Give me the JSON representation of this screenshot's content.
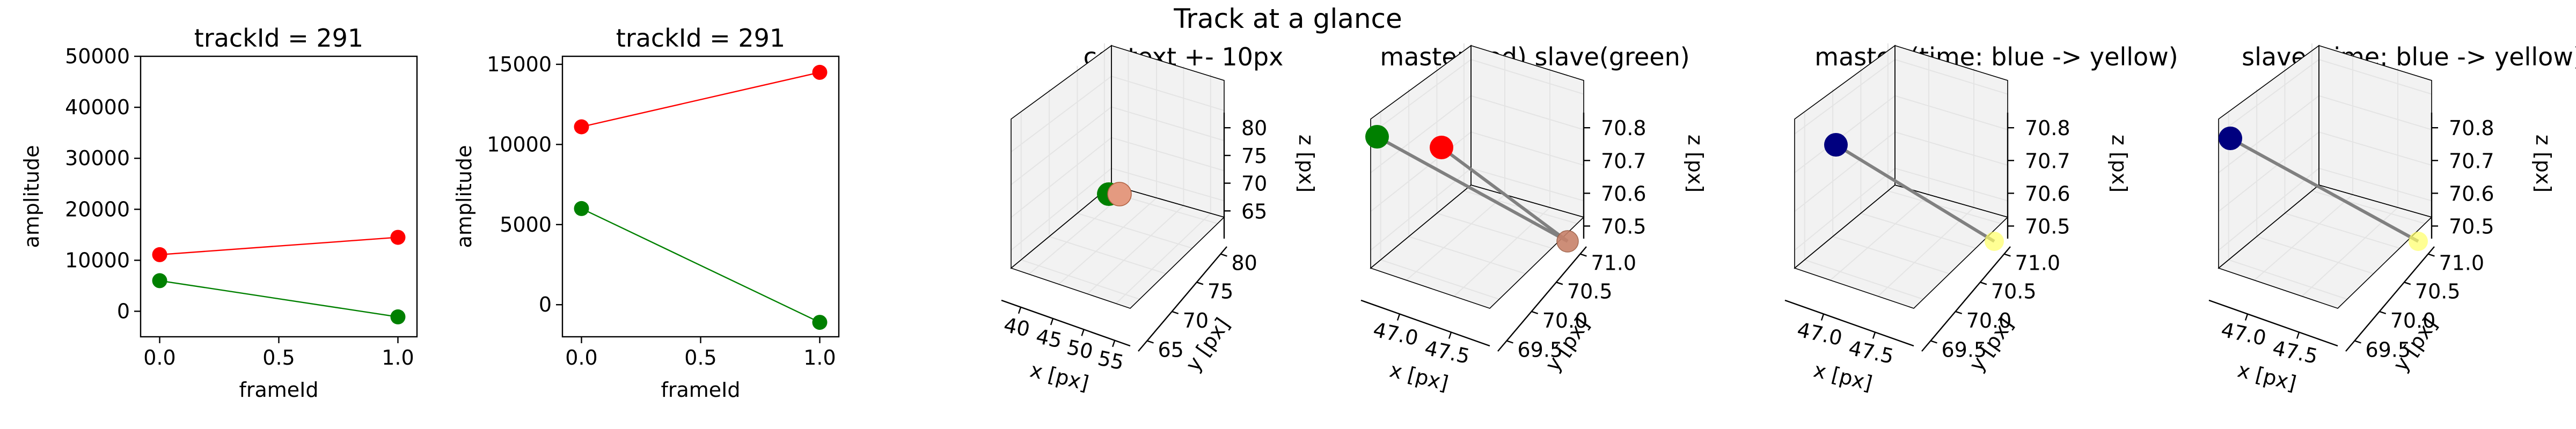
{
  "figure": {
    "title": "Track at a glance"
  },
  "chart_data": [
    {
      "type": "line",
      "title": "trackId = 291",
      "xlabel": "frameId",
      "ylabel": "amplitude",
      "xlim": [
        -0.08,
        1.08
      ],
      "ylim": [
        -5000,
        50000
      ],
      "xticks": [
        0.0,
        0.5,
        1.0
      ],
      "xtick_labels": [
        "0.0",
        "0.5",
        "1.0"
      ],
      "yticks": [
        0,
        10000,
        20000,
        30000,
        40000,
        50000
      ],
      "ytick_labels": [
        "0",
        "10000",
        "20000",
        "30000",
        "40000",
        "50000"
      ],
      "grid": false,
      "series": [
        {
          "color": "#ff0000",
          "x": [
            0,
            1
          ],
          "y": [
            11100,
            14500
          ]
        },
        {
          "color": "#008000",
          "x": [
            0,
            1
          ],
          "y": [
            6000,
            -1100
          ]
        }
      ]
    },
    {
      "type": "line",
      "title": "trackId = 291",
      "xlabel": "frameId",
      "ylabel": "amplitude",
      "xlim": [
        -0.08,
        1.08
      ],
      "ylim": [
        -2000,
        15500
      ],
      "xticks": [
        0.0,
        0.5,
        1.0
      ],
      "xtick_labels": [
        "0.0",
        "0.5",
        "1.0"
      ],
      "yticks": [
        0,
        5000,
        10000,
        15000
      ],
      "ytick_labels": [
        "0",
        "5000",
        "10000",
        "15000"
      ],
      "grid": false,
      "series": [
        {
          "color": "#ff0000",
          "x": [
            0,
            1
          ],
          "y": [
            11100,
            14500
          ]
        },
        {
          "color": "#008000",
          "x": [
            0,
            1
          ],
          "y": [
            6000,
            -1100
          ]
        }
      ]
    },
    {
      "type": "scatter",
      "projection": "3d",
      "title": "context +- 10px",
      "xlabel": "x [px]",
      "ylabel": "y [px]",
      "zlabel": "z [px]",
      "xtick_labels": [
        "40",
        "45",
        "50",
        "55"
      ],
      "ytick_labels": [
        "65",
        "70",
        "75",
        "80"
      ],
      "ztick_labels": [
        "65",
        "70",
        "75",
        "80"
      ],
      "points": [
        {
          "color": "#ff0000"
        },
        {
          "color": "#008000"
        }
      ]
    },
    {
      "type": "scatter",
      "projection": "3d",
      "title": "master(red) slave(green)",
      "xlabel": "x [px]",
      "ylabel": "y [px]",
      "zlabel": "z [px]",
      "xtick_labels": [
        "47.0",
        "47.5"
      ],
      "ytick_labels": [
        "69.5",
        "70.0",
        "70.5",
        "71.0"
      ],
      "ztick_labels": [
        "70.5",
        "70.6",
        "70.7",
        "70.8"
      ],
      "points": [
        {
          "color": "#008000"
        },
        {
          "color": "#ff0000"
        }
      ]
    },
    {
      "type": "scatter",
      "projection": "3d",
      "title": "master (time: blue -> yellow)",
      "xlabel": "x [px]",
      "ylabel": "y [px]",
      "zlabel": "z [px]",
      "xtick_labels": [
        "47.0",
        "47.5"
      ],
      "ytick_labels": [
        "69.5",
        "70.0",
        "70.5",
        "71.0"
      ],
      "ztick_labels": [
        "70.5",
        "70.6",
        "70.7",
        "70.8"
      ],
      "points": [
        {
          "color": "#00007f"
        },
        {
          "color": "#ffff66"
        }
      ]
    },
    {
      "type": "scatter",
      "projection": "3d",
      "title": "slave (time: blue -> yellow)",
      "xlabel": "x [px]",
      "ylabel": "y [px]",
      "zlabel": "z [px]",
      "xtick_labels": [
        "47.0",
        "47.5"
      ],
      "ytick_labels": [
        "69.5",
        "70.0",
        "70.5",
        "71.0"
      ],
      "ztick_labels": [
        "70.5",
        "70.6",
        "70.7",
        "70.8"
      ],
      "points": [
        {
          "color": "#00007f"
        },
        {
          "color": "#ffff66"
        }
      ]
    }
  ]
}
